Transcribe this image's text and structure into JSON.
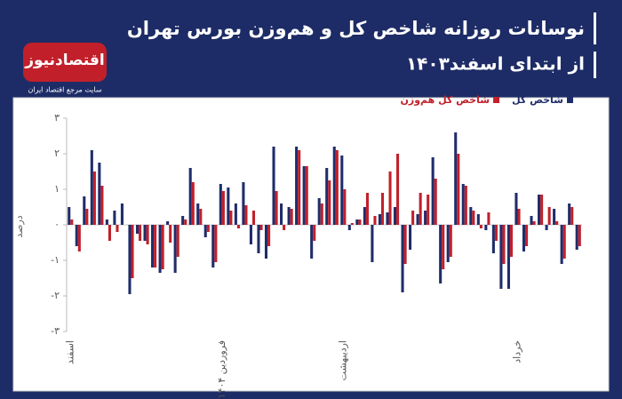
{
  "logo": {
    "name": "اقتصادنیوز",
    "tagline": "سایت مرجع اقتصاد ایران"
  },
  "chart_data": {
    "type": "bar",
    "title": "نوسانات روزانه شاخص کل و هم‌وزن بورس تهران",
    "subtitle": "از ابتدای اسفند۱۴۰۳",
    "y_label": "درصد",
    "legend": "top-right",
    "grid": false,
    "categories": [
      "اسفند",
      null,
      null,
      null,
      null,
      null,
      null,
      null,
      null,
      null,
      null,
      null,
      null,
      null,
      null,
      null,
      null,
      null,
      null,
      null,
      "فروردین ۱۴۰۴",
      null,
      null,
      null,
      null,
      null,
      null,
      null,
      null,
      null,
      null,
      null,
      null,
      null,
      null,
      null,
      "اردیبهشت",
      null,
      null,
      null,
      null,
      null,
      null,
      null,
      null,
      null,
      null,
      null,
      null,
      null,
      null,
      null,
      null,
      null,
      null,
      null,
      null,
      null,
      null,
      "خرداد",
      null,
      null,
      null,
      null,
      null,
      null,
      null,
      null
    ],
    "series": [
      {
        "name": "شاخص کل",
        "color": "#1f2d6b",
        "values": [
          0.5,
          -0.6,
          0.8,
          2.1,
          1.75,
          0.15,
          0.4,
          0.6,
          -1.95,
          -0.25,
          -0.45,
          -1.2,
          -1.35,
          0.1,
          -1.35,
          0.25,
          1.6,
          0.6,
          -0.35,
          -1.2,
          1.15,
          1.05,
          0.6,
          1.2,
          -0.55,
          -0.8,
          -0.95,
          2.2,
          0.6,
          0.5,
          2.2,
          1.65,
          -0.95,
          0.75,
          1.6,
          2.2,
          1.95,
          -0.15,
          0.15,
          0.5,
          -1.05,
          0.3,
          0.35,
          0.5,
          -1.9,
          -0.7,
          0.3,
          0.4,
          1.9,
          -1.65,
          -1.05,
          2.6,
          1.15,
          0.5,
          0.3,
          -0.15,
          -0.8,
          -1.8,
          -1.8,
          0.9,
          -0.75,
          0.25,
          0.85,
          -0.15,
          0.45,
          -1.1,
          0.6,
          -0.7
        ]
      },
      {
        "name": "شاخص کل هم‌وزن",
        "color": "#c1202b",
        "values": [
          0.15,
          -0.75,
          0.45,
          1.5,
          1.1,
          -0.45,
          -0.2,
          0,
          -1.5,
          -0.45,
          -0.55,
          -1.2,
          -1.25,
          -0.5,
          -0.9,
          0.15,
          1.2,
          0.45,
          -0.2,
          -1.05,
          0.95,
          0.4,
          -0.1,
          0.55,
          0.4,
          -0.15,
          -0.6,
          0.95,
          -0.15,
          0.45,
          2.1,
          1.65,
          -0.45,
          0.6,
          1.25,
          2.1,
          1.0,
          0.05,
          0.15,
          0.9,
          0.25,
          0.9,
          1.5,
          2.0,
          -1.1,
          0.4,
          0.9,
          0.85,
          1.3,
          -1.25,
          -0.9,
          2.0,
          1.1,
          0.4,
          -0.1,
          0.35,
          -0.45,
          -1.1,
          -0.9,
          0.45,
          -0.6,
          0.1,
          0.85,
          0.5,
          0.1,
          -0.95,
          0.5,
          -0.6
        ]
      }
    ],
    "ylim": [
      -3,
      3
    ],
    "yticks": [
      {
        "value": -3,
        "label": "-۳"
      },
      {
        "value": -2,
        "label": "-۲"
      },
      {
        "value": -1,
        "label": "-۱"
      },
      {
        "value": 0,
        "label": "۰"
      },
      {
        "value": 1,
        "label": "۱"
      },
      {
        "value": 2,
        "label": "۲"
      },
      {
        "value": 3,
        "label": "۳"
      }
    ]
  }
}
